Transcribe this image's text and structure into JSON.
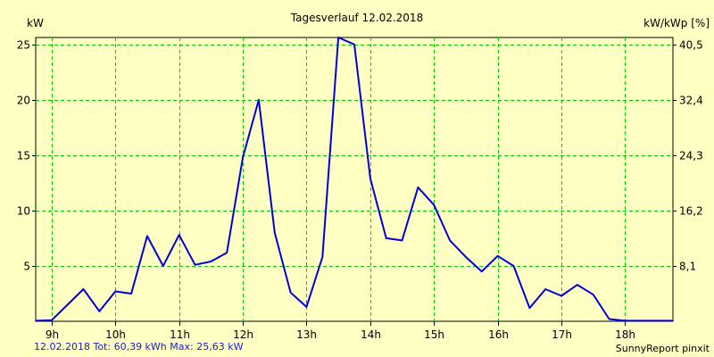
{
  "chart_data": {
    "type": "line",
    "title": "Tagesverlauf 12.02.2018",
    "ylabel": "kW",
    "y2label": "kW/kWp [%]",
    "ylim": [
      0,
      25.63
    ],
    "yticks": [
      5,
      10,
      15,
      20,
      25
    ],
    "yticklabels": [
      "5",
      "10",
      "15",
      "20",
      "25"
    ],
    "y2ticks": [
      5,
      10,
      15,
      20,
      25
    ],
    "y2ticklabels": [
      "8,1",
      "16,2",
      "24,3",
      "32,4",
      "40,5"
    ],
    "xlim": [
      8.75,
      18.75
    ],
    "xticks": [
      9,
      10,
      11,
      12,
      13,
      14,
      15,
      16,
      17,
      18
    ],
    "xticklabels": [
      "9h",
      "10h",
      "11h",
      "12h",
      "13h",
      "14h",
      "15h",
      "16h",
      "17h",
      "18h"
    ],
    "grid": true,
    "series": [
      {
        "name": "kW",
        "color": "#0000dd",
        "x": [
          8.75,
          9.0,
          9.25,
          9.5,
          9.75,
          10.0,
          10.25,
          10.5,
          10.75,
          11.0,
          11.25,
          11.5,
          11.75,
          12.0,
          12.25,
          12.5,
          12.75,
          13.0,
          13.25,
          13.5,
          13.75,
          14.0,
          14.25,
          14.5,
          14.75,
          15.0,
          15.25,
          15.5,
          15.75,
          16.0,
          16.25,
          16.5,
          16.75,
          17.0,
          17.25,
          17.5,
          17.75,
          18.0,
          18.25,
          18.5,
          18.75
        ],
        "values": [
          0.05,
          0.1,
          1.5,
          2.9,
          0.9,
          2.7,
          2.5,
          7.7,
          5.0,
          7.8,
          5.1,
          5.4,
          6.2,
          14.8,
          20.0,
          8.0,
          2.6,
          1.3,
          5.8,
          25.63,
          25.0,
          12.9,
          7.5,
          7.3,
          12.1,
          10.5,
          7.3,
          5.8,
          4.5,
          5.9,
          5.0,
          1.2,
          2.9,
          2.3,
          3.3,
          2.4,
          0.2,
          0.05,
          0.05,
          0.05,
          0.05
        ]
      }
    ]
  },
  "footer": {
    "left": "12.02.2018 Tot: 60,39 kWh Max: 25,63 kW",
    "right": "SunnyReport pinxit"
  },
  "colors": {
    "background": "#ffffc4",
    "grid": "#00cc00",
    "line": "#0000dd",
    "axis": "#000000"
  }
}
